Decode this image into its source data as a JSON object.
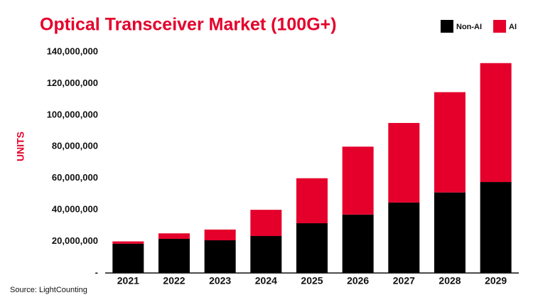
{
  "chart_data": {
    "type": "stacked-bar",
    "title": "Optical Transceiver Market (100G+)",
    "ylabel": "UNITS",
    "source": "Source: LightCounting",
    "categories": [
      "2021",
      "2022",
      "2023",
      "2024",
      "2025",
      "2026",
      "2027",
      "2028",
      "2029"
    ],
    "series": [
      {
        "name": "Non-AI",
        "color": "#000000",
        "values": [
          18500000,
          21600000,
          20700000,
          23400000,
          31500000,
          37000000,
          44600000,
          51000000,
          57600000
        ]
      },
      {
        "name": "AI",
        "color": "#e4002b",
        "values": [
          1500000,
          3500000,
          6800000,
          16600000,
          28500000,
          43000000,
          50400000,
          63500000,
          75300000
        ]
      }
    ],
    "ylim": [
      0,
      140000000
    ],
    "yticks": [
      {
        "value": 0,
        "label": "-"
      },
      {
        "value": 20000000,
        "label": "20,000,000"
      },
      {
        "value": 40000000,
        "label": "40,000,000"
      },
      {
        "value": 60000000,
        "label": "60,000,000"
      },
      {
        "value": 80000000,
        "label": "80,000,000"
      },
      {
        "value": 100000000,
        "label": "100,000,000"
      },
      {
        "value": 120000000,
        "label": "120,000,000"
      },
      {
        "value": 140000000,
        "label": "140,000,000"
      }
    ],
    "grid": false
  }
}
